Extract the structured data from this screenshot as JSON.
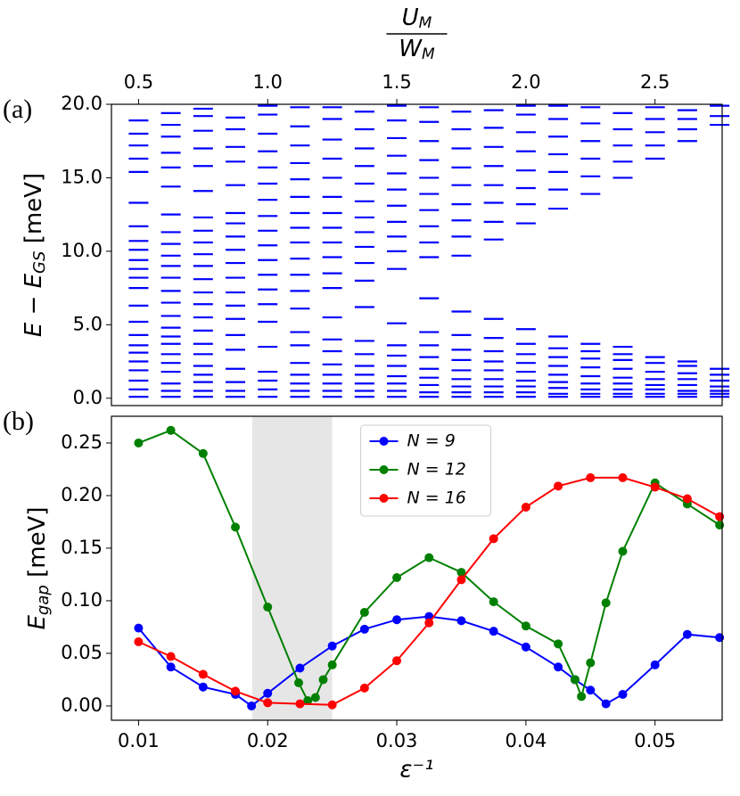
{
  "chart_data": [
    {
      "type": "levels",
      "label": "(a)",
      "ylabel": {
        "main": "E − E",
        "sub": "GS",
        "unit": " [meV]"
      },
      "x2label": {
        "num": "U",
        "num_sub": "M",
        "den": "W",
        "den_sub": "M"
      },
      "xlim": [
        0.0079,
        0.0552
      ],
      "x2lim": [
        0.395,
        2.76
      ],
      "x2ticks": [
        0.5,
        {
          "value": 1.0,
          "label": "1.0"
        },
        1.5,
        {
          "value": 2.0,
          "label": "2.0"
        },
        2.5
      ],
      "ylim": [
        -0.5,
        20
      ],
      "yticks": [
        {
          "value": 0,
          "label": "0.0"
        },
        {
          "value": 5,
          "label": "5.0"
        },
        {
          "value": 10,
          "label": "10.0"
        },
        {
          "value": 15,
          "label": "15.0"
        },
        {
          "value": 20,
          "label": "20.0"
        }
      ],
      "color": "#0000ff",
      "x": [
        0.01,
        0.0125,
        0.015,
        0.0175,
        0.02,
        0.0225,
        0.025,
        0.0275,
        0.03,
        0.0325,
        0.035,
        0.0375,
        0.04,
        0.0425,
        0.045,
        0.0475,
        0.05,
        0.0525,
        0.055
      ],
      "levels": [
        [
          0.1,
          0.6,
          1.2,
          1.9,
          2.5,
          3.1,
          3.6,
          4.3,
          5.2,
          6.3,
          7.5,
          8.2,
          8.8,
          9.4,
          10.1,
          10.7,
          11.7,
          13.3,
          15.4,
          16.3,
          17.2,
          18.0,
          18.9
        ],
        [
          0.1,
          0.5,
          1.0,
          1.8,
          2.4,
          3.0,
          3.7,
          4.2,
          4.8,
          5.6,
          6.5,
          7.3,
          8.2,
          9.0,
          9.7,
          10.5,
          11.3,
          12.5,
          14.4,
          15.7,
          16.7,
          17.8,
          18.6,
          19.4
        ],
        [
          0.1,
          0.5,
          1.1,
          1.6,
          2.2,
          3.0,
          3.7,
          4.6,
          5.5,
          6.4,
          7.2,
          8.1,
          9.0,
          9.8,
          10.6,
          11.4,
          12.3,
          14.1,
          15.8,
          17.0,
          18.2,
          19.2,
          19.7
        ],
        [
          0.1,
          0.5,
          1.1,
          2.0,
          3.3,
          4.3,
          5.4,
          6.3,
          7.2,
          8.2,
          9.2,
          10.1,
          11.0,
          11.9,
          12.6,
          14.5,
          16.1,
          17.1,
          18.3,
          19.1
        ],
        [
          0.1,
          0.6,
          1.2,
          1.8,
          3.5,
          5.2,
          6.4,
          7.4,
          8.4,
          9.4,
          10.4,
          11.4,
          12.4,
          13.5,
          14.6,
          15.7,
          16.8,
          18.0,
          19.3,
          19.9
        ],
        [
          0.1,
          0.5,
          1.0,
          1.6,
          2.4,
          3.6,
          4.5,
          6.1,
          7.3,
          8.4,
          9.5,
          10.6,
          11.6,
          12.6,
          13.7,
          14.9,
          16.0,
          17.2,
          18.5,
          19.8
        ],
        [
          0.1,
          0.5,
          1.0,
          1.6,
          2.3,
          3.2,
          4.0,
          5.5,
          7.5,
          8.5,
          9.6,
          10.6,
          11.6,
          12.6,
          13.7,
          15.0,
          16.3,
          17.6,
          19.0,
          19.8
        ],
        [
          0.1,
          0.5,
          1.0,
          1.6,
          2.2,
          3.0,
          3.9,
          6.2,
          8.0,
          9.2,
          10.3,
          11.3,
          12.3,
          13.4,
          14.6,
          15.8,
          17.0,
          18.3,
          19.5
        ],
        [
          0.1,
          0.5,
          1.0,
          1.5,
          2.2,
          2.9,
          3.6,
          5.1,
          8.8,
          10.0,
          11.0,
          12.0,
          13.1,
          14.2,
          15.3,
          16.5,
          17.7,
          18.9,
          19.9
        ],
        [
          0.1,
          0.4,
          0.9,
          1.4,
          2.0,
          2.8,
          3.6,
          4.5,
          6.8,
          9.6,
          10.6,
          11.7,
          12.8,
          13.9,
          15.0,
          16.2,
          17.5,
          18.8,
          19.8
        ],
        [
          0.1,
          0.4,
          0.8,
          1.3,
          1.9,
          2.6,
          3.3,
          4.3,
          5.9,
          9.7,
          11.0,
          12.1,
          13.2,
          14.5,
          15.7,
          17.0,
          18.3,
          19.5
        ],
        [
          0.1,
          0.4,
          0.8,
          1.3,
          1.9,
          2.5,
          3.2,
          4.1,
          5.4,
          10.8,
          12.0,
          13.3,
          14.5,
          15.8,
          17.1,
          18.4,
          19.6
        ],
        [
          0.1,
          0.4,
          0.8,
          1.2,
          1.8,
          2.4,
          3.0,
          3.7,
          4.7,
          11.9,
          13.2,
          14.3,
          15.5,
          16.8,
          18.1,
          19.3,
          19.9
        ],
        [
          0.1,
          0.3,
          0.7,
          1.1,
          1.6,
          2.2,
          2.8,
          3.4,
          4.2,
          12.9,
          14.2,
          15.4,
          16.6,
          17.8,
          19.0,
          19.9
        ],
        [
          0.1,
          0.3,
          0.6,
          1.0,
          1.5,
          2.1,
          2.7,
          3.2,
          3.7,
          13.9,
          15.1,
          16.3,
          17.5,
          18.7,
          19.8
        ],
        [
          0.1,
          0.3,
          0.6,
          1.0,
          1.4,
          2.0,
          2.6,
          3.0,
          3.5,
          15.0,
          16.1,
          17.2,
          18.3,
          19.4
        ],
        [
          0.1,
          0.3,
          0.6,
          0.9,
          1.3,
          1.8,
          2.4,
          2.8,
          16.3,
          17.2,
          18.1,
          19.0,
          19.8
        ],
        [
          0.1,
          0.3,
          0.5,
          0.9,
          1.3,
          1.7,
          2.2,
          2.5,
          17.5,
          18.3,
          19.0,
          19.6
        ],
        [
          0.1,
          0.3,
          0.5,
          0.8,
          1.2,
          1.6,
          2.0,
          18.6,
          19.2,
          19.9
        ]
      ]
    },
    {
      "type": "line",
      "label": "(b)",
      "ylabel": {
        "main": "E",
        "sub": "gap",
        "unit": " [meV]"
      },
      "xlabel": "ε⁻¹",
      "xlim": [
        0.0079,
        0.0552
      ],
      "xticks": [
        0.01,
        0.02,
        0.03,
        0.04,
        0.05
      ],
      "ylim": [
        -0.0136,
        0.2754
      ],
      "yticks": [
        {
          "value": 0,
          "label": "0.00"
        },
        {
          "value": 0.05,
          "label": "0.05"
        },
        {
          "value": 0.1,
          "label": "0.10"
        },
        {
          "value": 0.15,
          "label": "0.15"
        },
        {
          "value": 0.2,
          "label": "0.20"
        },
        {
          "value": 0.25,
          "label": "0.25"
        }
      ],
      "shade": [
        0.0188,
        0.025
      ],
      "legend": "upper center",
      "series": [
        {
          "name": "N = 9",
          "color": "#0000ff",
          "x": [
            0.01,
            0.0125,
            0.015,
            0.0175,
            0.01875,
            0.02,
            0.0225,
            0.025,
            0.0275,
            0.03,
            0.0325,
            0.035,
            0.0375,
            0.04,
            0.0425,
            0.0438,
            0.045,
            0.0462,
            0.0475,
            0.05,
            0.0525,
            0.055
          ],
          "values": [
            0.074,
            0.037,
            0.018,
            0.011,
            0.0,
            0.012,
            0.036,
            0.057,
            0.073,
            0.082,
            0.085,
            0.081,
            0.071,
            0.056,
            0.037,
            0.025,
            0.015,
            0.002,
            0.011,
            0.039,
            0.068,
            0.065
          ]
        },
        {
          "name": "N = 12",
          "color": "#008000",
          "x": [
            0.01,
            0.0125,
            0.015,
            0.0175,
            0.02,
            0.0224,
            0.0231,
            0.0237,
            0.0243,
            0.025,
            0.0275,
            0.03,
            0.0325,
            0.035,
            0.0375,
            0.04,
            0.0425,
            0.0438,
            0.0443,
            0.045,
            0.0462,
            0.0475,
            0.05,
            0.0525,
            0.055
          ],
          "values": [
            0.25,
            0.262,
            0.24,
            0.17,
            0.094,
            0.022,
            0.005,
            0.008,
            0.025,
            0.039,
            0.089,
            0.122,
            0.141,
            0.127,
            0.099,
            0.076,
            0.059,
            0.025,
            0.009,
            0.041,
            0.098,
            0.147,
            0.212,
            0.192,
            0.172
          ]
        },
        {
          "name": "N = 16",
          "color": "#ff0000",
          "x": [
            0.01,
            0.0125,
            0.015,
            0.0175,
            0.02,
            0.0225,
            0.025,
            0.0275,
            0.03,
            0.0325,
            0.035,
            0.0375,
            0.04,
            0.0425,
            0.045,
            0.0475,
            0.05,
            0.0525,
            0.055
          ],
          "values": [
            0.061,
            0.047,
            0.03,
            0.014,
            0.003,
            0.002,
            0.001,
            0.017,
            0.043,
            0.079,
            0.12,
            0.159,
            0.189,
            0.209,
            0.217,
            0.217,
            0.208,
            0.197,
            0.18
          ]
        }
      ]
    }
  ]
}
